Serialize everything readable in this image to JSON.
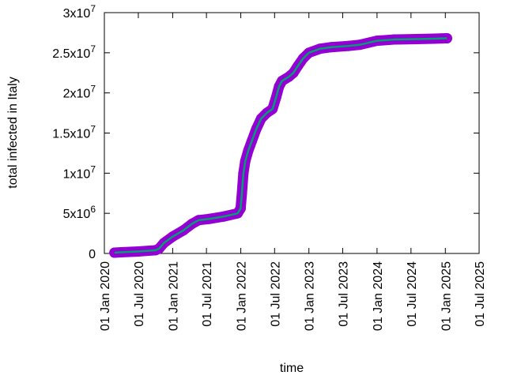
{
  "chart_data": {
    "type": "line",
    "title": "",
    "xlabel": "time",
    "ylabel": "total infected in Italy",
    "xlim": [
      "2020-01-01",
      "2025-07-01"
    ],
    "ylim": [
      0,
      30000000
    ],
    "grid": false,
    "legend": "none",
    "x_tick_labels": [
      "01 Jan 2020",
      "01 Jul 2020",
      "01 Jan 2021",
      "01 Jul 2021",
      "01 Jan 2022",
      "01 Jul 2022",
      "01 Jan 2023",
      "01 Jul 2023",
      "01 Jan 2024",
      "01 Jul 2024",
      "01 Jan 2025",
      "01 Jul 2025"
    ],
    "x_tick_dates": [
      "2020-01-01",
      "2020-07-01",
      "2021-01-01",
      "2021-07-01",
      "2022-01-01",
      "2022-07-01",
      "2023-01-01",
      "2023-07-01",
      "2024-01-01",
      "2024-07-01",
      "2025-01-01",
      "2025-07-01"
    ],
    "y_ticks": [
      {
        "value": 0,
        "mantissa": "0",
        "exp": ""
      },
      {
        "value": 5000000,
        "mantissa": "5x10",
        "exp": "6"
      },
      {
        "value": 10000000,
        "mantissa": "1x10",
        "exp": "7"
      },
      {
        "value": 15000000,
        "mantissa": "1.5x10",
        "exp": "7"
      },
      {
        "value": 20000000,
        "mantissa": "2x10",
        "exp": "7"
      },
      {
        "value": 25000000,
        "mantissa": "2.5x10",
        "exp": "7"
      },
      {
        "value": 30000000,
        "mantissa": "3x10",
        "exp": "7"
      }
    ],
    "series": [
      {
        "marker_color": "#9400d3",
        "line_color": "#009e73",
        "x": [
          "2020-02-24",
          "2020-04-01",
          "2020-07-01",
          "2020-10-01",
          "2020-10-20",
          "2020-11-15",
          "2021-01-01",
          "2021-03-01",
          "2021-04-15",
          "2021-05-20",
          "2021-07-15",
          "2021-10-01",
          "2021-12-15",
          "2021-12-31",
          "2022-01-07",
          "2022-01-15",
          "2022-01-25",
          "2022-02-10",
          "2022-03-01",
          "2022-03-25",
          "2022-04-20",
          "2022-05-20",
          "2022-06-20",
          "2022-07-10",
          "2022-07-25",
          "2022-08-10",
          "2022-09-15",
          "2022-10-10",
          "2022-11-01",
          "2022-12-01",
          "2023-01-01",
          "2023-03-01",
          "2023-05-01",
          "2023-08-01",
          "2023-10-01",
          "2024-01-01",
          "2024-04-01",
          "2024-08-01",
          "2024-11-01",
          "2025-01-01",
          "2025-01-10"
        ],
        "y": [
          100000,
          150000,
          250000,
          400000,
          600000,
          1300000,
          2100000,
          2900000,
          3700000,
          4150000,
          4300000,
          4600000,
          5000000,
          5600000,
          7500000,
          10000000,
          11500000,
          12800000,
          14000000,
          15500000,
          16800000,
          17500000,
          18000000,
          19500000,
          20800000,
          21500000,
          22000000,
          22500000,
          23300000,
          24300000,
          25000000,
          25500000,
          25700000,
          25850000,
          26000000,
          26500000,
          26650000,
          26700000,
          26750000,
          26800000,
          26800000
        ]
      }
    ]
  }
}
